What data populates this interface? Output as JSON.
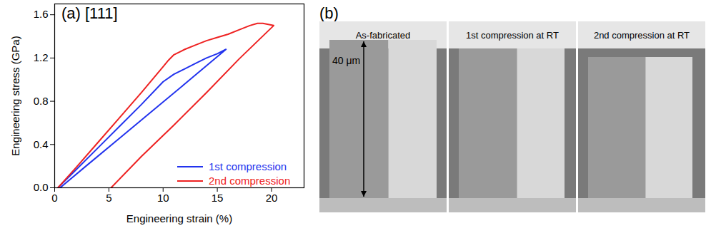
{
  "chart_data": {
    "type": "line",
    "title": "(a) [111]",
    "xlabel": "Engineering strain (%)",
    "ylabel": "Engineering stress (GPa)",
    "xlim": [
      0,
      23
    ],
    "xticks": [
      0,
      5,
      10,
      15,
      20
    ],
    "ylim": [
      0,
      1.7
    ],
    "yticks": [
      {
        "value": 0,
        "label": "0.0"
      },
      0.4,
      0.8,
      1.2,
      1.6
    ],
    "legend": "bottom-right",
    "series": [
      {
        "name": "1st compression",
        "color": "#2233ee",
        "x": [
          0.3,
          2,
          4,
          6,
          8,
          10,
          11,
          12,
          13,
          14,
          15,
          15.8,
          12,
          9,
          6,
          3,
          0.5
        ],
        "values": [
          0,
          0.17,
          0.37,
          0.57,
          0.77,
          0.98,
          1.05,
          1.1,
          1.15,
          1.2,
          1.24,
          1.28,
          0.96,
          0.71,
          0.46,
          0.21,
          0
        ]
      },
      {
        "name": "2nd compression",
        "color": "#ee2222",
        "x": [
          0.3,
          2,
          4,
          6,
          8,
          10,
          10.5,
          11,
          12,
          13,
          14,
          15,
          16,
          17,
          18,
          18.7,
          19.2,
          19.7,
          20.2,
          17,
          14,
          11,
          8,
          5.2
        ],
        "values": [
          0,
          0.19,
          0.42,
          0.65,
          0.88,
          1.12,
          1.18,
          1.23,
          1.28,
          1.32,
          1.36,
          1.39,
          1.42,
          1.46,
          1.5,
          1.52,
          1.52,
          1.51,
          1.5,
          1.19,
          0.88,
          0.58,
          0.29,
          0
        ]
      }
    ]
  },
  "panel_b": {
    "label": "(b)",
    "images": [
      "As-fabricated",
      "1st compression at RT",
      "2nd compression at RT"
    ],
    "scale_bar": "40 μm"
  }
}
